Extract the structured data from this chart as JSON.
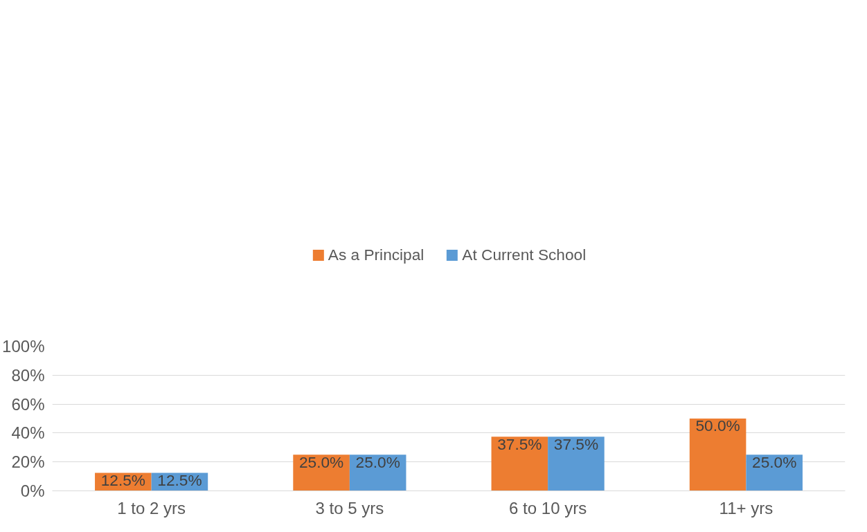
{
  "chart_data": {
    "type": "bar",
    "categories": [
      "1 to 2 yrs",
      "3 to 5 yrs",
      "6 to 10 yrs",
      "11+ yrs"
    ],
    "series": [
      {
        "name": "As a Principal",
        "color": "#ed7d31",
        "values": [
          12.5,
          25.0,
          37.5,
          50.0
        ],
        "value_labels": [
          "12.5%",
          "25.0%",
          "37.5%",
          "50.0%"
        ]
      },
      {
        "name": "At Current School",
        "color": "#5b9bd5",
        "values": [
          12.5,
          25.0,
          37.5,
          25.0
        ],
        "value_labels": [
          "12.5%",
          "25.0%",
          "37.5%",
          "25.0%"
        ]
      }
    ],
    "ylim": [
      0,
      100
    ],
    "yticks": [
      {
        "value": 0,
        "label": "0%"
      },
      {
        "value": 20,
        "label": "20%"
      },
      {
        "value": 40,
        "label": "40%"
      },
      {
        "value": 60,
        "label": "60%"
      },
      {
        "value": 80,
        "label": "80%"
      },
      {
        "value": 100,
        "label": "100%"
      }
    ],
    "grid": "y",
    "legend": "top"
  }
}
